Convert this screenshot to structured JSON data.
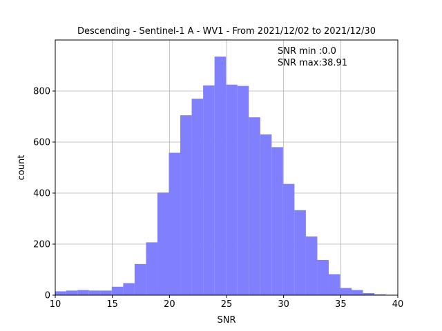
{
  "chart_data": {
    "type": "bar",
    "title": "Descending - Sentinel-1 A - WV1 - From 2021/12/02 to 2021/12/30",
    "xlabel": "SNR",
    "ylabel": "count",
    "xlim": [
      10,
      40
    ],
    "ylim": [
      0,
      1000
    ],
    "xticks": [
      "10",
      "15",
      "20",
      "25",
      "30",
      "35",
      "40"
    ],
    "yticks": [
      "0",
      "200",
      "400",
      "600",
      "800"
    ],
    "grid": true,
    "bar_color": "#8080ff",
    "bin_edges": [
      9.95,
      10.95,
      11.95,
      12.95,
      13.95,
      14.95,
      15.95,
      16.95,
      17.95,
      18.95,
      19.95,
      20.95,
      21.95,
      22.95,
      23.95,
      24.95,
      25.95,
      26.95,
      27.95,
      28.95,
      29.95,
      30.95,
      31.95,
      32.95,
      33.95,
      34.95,
      35.95,
      36.95,
      37.95,
      38.95
    ],
    "counts": [
      15,
      18,
      20,
      18,
      18,
      33,
      47,
      122,
      207,
      402,
      558,
      705,
      770,
      822,
      935,
      825,
      820,
      697,
      630,
      580,
      436,
      333,
      230,
      138,
      82,
      28,
      20,
      8,
      3
    ],
    "annotations": [
      "SNR min :0.0",
      "SNR max:38.91"
    ]
  }
}
